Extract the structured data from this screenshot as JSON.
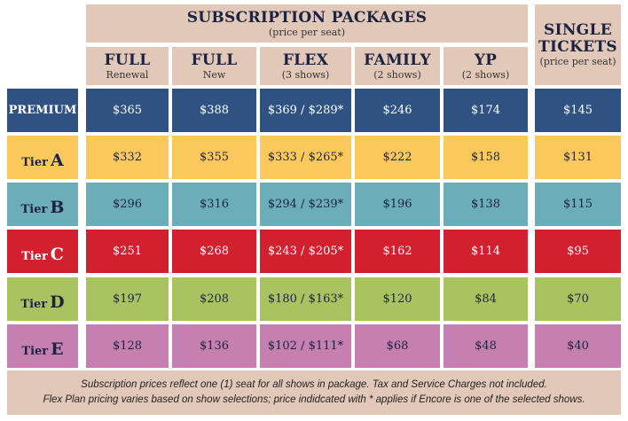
{
  "header": {
    "subscription_title": "SUBSCRIPTION PACKAGES",
    "subscription_sub": "(price per seat)",
    "single_title_1": "SINGLE",
    "single_title_2": "TICKETS",
    "single_sub": "(price per seat)"
  },
  "columns": [
    {
      "title": "FULL",
      "sub": "Renewal"
    },
    {
      "title": "FULL",
      "sub": "New"
    },
    {
      "title": "FLEX",
      "sub": "(3 shows)"
    },
    {
      "title": "FAMILY",
      "sub": "(2 shows)"
    },
    {
      "title": "YP",
      "sub": "(2 shows)"
    }
  ],
  "rows": [
    {
      "prefix": "",
      "label": "PREMIUM",
      "bg": "#2f5282",
      "fg": "#ffffff",
      "values": [
        "$365",
        "$388",
        "$369 / $289*",
        "$246",
        "$174",
        "$145"
      ]
    },
    {
      "prefix": "Tier",
      "label": "A",
      "bg": "#fec95c",
      "fg": "#1c2340",
      "values": [
        "$332",
        "$355",
        "$333 / $265*",
        "$222",
        "$158",
        "$131"
      ]
    },
    {
      "prefix": "Tier",
      "label": "B",
      "bg": "#6badb9",
      "fg": "#1c2340",
      "values": [
        "$296",
        "$316",
        "$294 / $239*",
        "$196",
        "$138",
        "$115"
      ]
    },
    {
      "prefix": "Tier",
      "label": "C",
      "bg": "#d3202e",
      "fg": "#ffffff",
      "values": [
        "$251",
        "$268",
        "$243 / $205*",
        "$162",
        "$114",
        "$95"
      ]
    },
    {
      "prefix": "Tier",
      "label": "D",
      "bg": "#a9c361",
      "fg": "#1c2340",
      "values": [
        "$197",
        "$208",
        "$180 / $163*",
        "$120",
        "$84",
        "$70"
      ]
    },
    {
      "prefix": "Tier",
      "label": "E",
      "bg": "#c57fb1",
      "fg": "#1c2340",
      "values": [
        "$128",
        "$136",
        "$102 / $111*",
        "$68",
        "$48",
        "$40"
      ]
    }
  ],
  "footer": {
    "line1": "Subscription prices reflect one (1) seat for all shows in package.  Tax and Service Charges not included.",
    "line2": "Flex Plan pricing varies based on show selections; price indidcated with * applies if Encore is one of the selected shows."
  }
}
